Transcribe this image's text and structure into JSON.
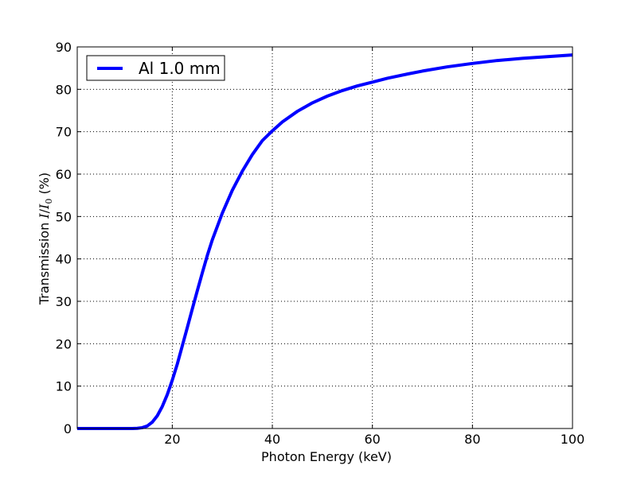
{
  "chart_data": {
    "type": "line",
    "title": "",
    "xlabel": "Photon Energy (keV)",
    "ylabel": {
      "prefix": "Transmission ",
      "math_I": "I",
      "slash": "/",
      "math_I0": "I",
      "subscript": "0",
      "suffix": " (%)"
    },
    "xlim": [
      1,
      100
    ],
    "ylim": [
      0,
      90
    ],
    "xticks": [
      20,
      40,
      60,
      80,
      100
    ],
    "yticks": [
      0,
      10,
      20,
      30,
      40,
      50,
      60,
      70,
      80,
      90
    ],
    "xtick_labels": [
      "20",
      "40",
      "60",
      "80",
      "100"
    ],
    "ytick_labels": [
      "0",
      "10",
      "20",
      "30",
      "40",
      "50",
      "60",
      "70",
      "80",
      "90"
    ],
    "grid": true,
    "legend_position": "upper-left",
    "series": [
      {
        "name": "Al 1.0 mm",
        "color": "#0000ff",
        "x": [
          1,
          5,
          10,
          12,
          13,
          14,
          15,
          16,
          17,
          18,
          19,
          20,
          21,
          22,
          23,
          24,
          25,
          26,
          27,
          28,
          30,
          32,
          34,
          36,
          38,
          40,
          42,
          45,
          48,
          51,
          54,
          57,
          60,
          63,
          67,
          70,
          75,
          80,
          85,
          90,
          95,
          100
        ],
        "y": [
          0,
          0,
          0,
          0,
          0.05,
          0.2,
          0.6,
          1.5,
          3,
          5.2,
          8,
          11.4,
          15.2,
          19.5,
          23.8,
          28.2,
          32.5,
          36.7,
          40.8,
          44.5,
          50.8,
          56.2,
          60.7,
          64.6,
          67.9,
          70.2,
          72.3,
          74.8,
          76.8,
          78.4,
          79.7,
          80.8,
          81.7,
          82.6,
          83.6,
          84.3,
          85.3,
          86.1,
          86.8,
          87.3,
          87.7,
          88.1
        ]
      }
    ]
  }
}
